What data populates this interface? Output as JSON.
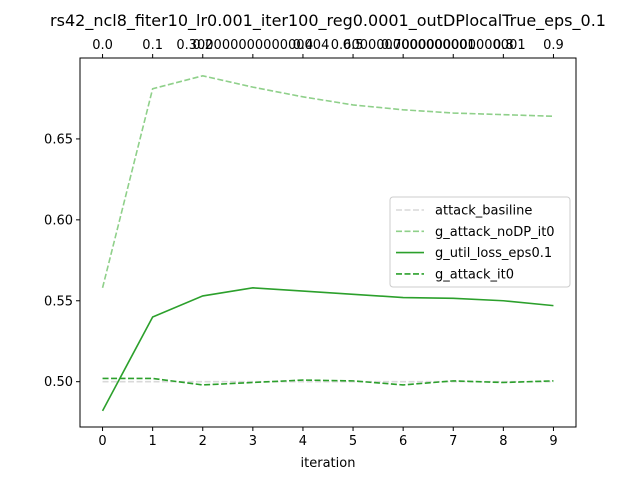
{
  "chart_data": {
    "type": "line",
    "title": "rs42_ncl8_fiter10_lr0.001_iter100_reg0.0001_outDPlocalTrue_eps_0.1",
    "xlabel": "iteration",
    "ylabel": "",
    "x": [
      0,
      1,
      2,
      3,
      4,
      5,
      6,
      7,
      8,
      9
    ],
    "x_ticks": [
      "0",
      "1",
      "2",
      "3",
      "4",
      "5",
      "6",
      "7",
      "8",
      "9"
    ],
    "xlim": [
      -0.45,
      9.45
    ],
    "ylim": [
      0.472,
      0.7
    ],
    "y_ticks": [
      0.5,
      0.55,
      0.6,
      0.65
    ],
    "y_tick_labels": [
      "0.50",
      "0.55",
      "0.60",
      "0.65"
    ],
    "top_axis_ticks": [
      "0.0",
      "0.1",
      "0.2",
      "0.30000000000000004",
      "0.4",
      "0.5",
      "0.6000000000000001",
      "0.7000000000000001",
      "0.8",
      "0.9"
    ],
    "grid": false,
    "legend_position": "center-right",
    "series": [
      {
        "name": "attack_basiline",
        "color": "#d9d9d9",
        "style": "dashed",
        "values": [
          0.5,
          0.5,
          0.5,
          0.5,
          0.5,
          0.5,
          0.5,
          0.5,
          0.5,
          0.5
        ]
      },
      {
        "name": "g_attack_noDP_it0",
        "color": "#8fd08a",
        "style": "dashed",
        "values": [
          0.558,
          0.681,
          0.689,
          0.682,
          0.676,
          0.671,
          0.668,
          0.666,
          0.665,
          0.664
        ]
      },
      {
        "name": "g_util_loss_eps0.1",
        "color": "#2ca02c",
        "style": "solid",
        "values": [
          0.482,
          0.54,
          0.553,
          0.558,
          0.556,
          0.554,
          0.552,
          0.5515,
          0.55,
          0.547
        ]
      },
      {
        "name": "g_attack_it0",
        "color": "#2ca02c",
        "style": "dashed",
        "values": [
          0.502,
          0.502,
          0.498,
          0.4995,
          0.501,
          0.5005,
          0.498,
          0.5005,
          0.4995,
          0.5005
        ]
      }
    ]
  }
}
